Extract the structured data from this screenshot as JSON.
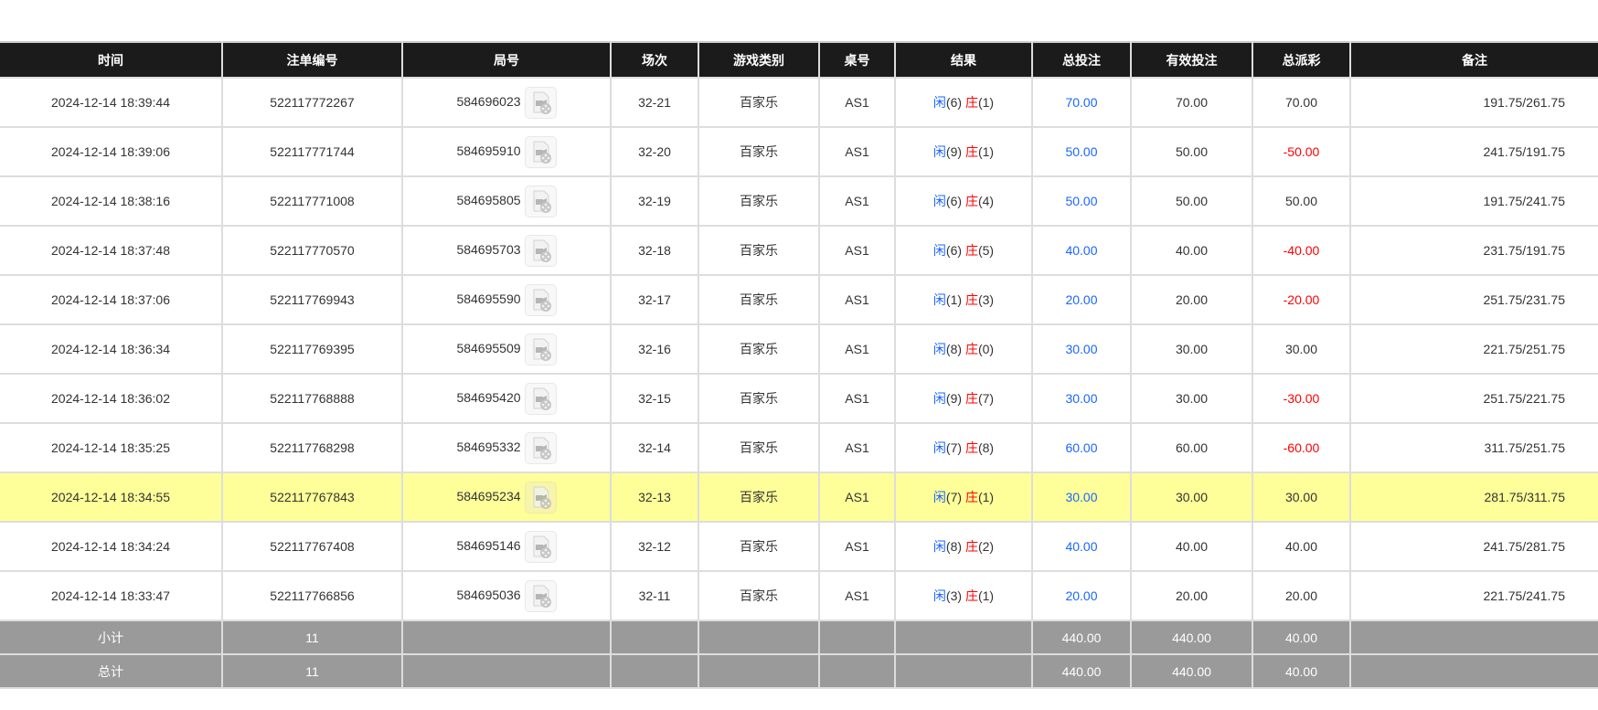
{
  "colors": {
    "header_bg": "#1b1b1b",
    "highlight_row": "#ffff99",
    "summary_bg": "#9a9a9a",
    "player": "#1a66ff",
    "banker": "#ff0000",
    "negative": "#ff0000",
    "total_bet": "#1a66ff"
  },
  "columns": [
    "时间",
    "注单编号",
    "局号",
    "场次",
    "游戏类别",
    "桌号",
    "结果",
    "总投注",
    "有效投注",
    "总派彩",
    "备注"
  ],
  "result_labels": {
    "player": "闲",
    "banker": "庄"
  },
  "rows": [
    {
      "time": "2024-12-14 18:39:44",
      "bet_id": "522117772267",
      "round": "584696023",
      "shoe": "32-21",
      "game": "百家乐",
      "table": "AS1",
      "p": "(6)",
      "b": "(1)",
      "total": "70.00",
      "valid": "70.00",
      "payout": "70.00",
      "neg": false,
      "note": "191.75/261.75",
      "hl": false
    },
    {
      "time": "2024-12-14 18:39:06",
      "bet_id": "522117771744",
      "round": "584695910",
      "shoe": "32-20",
      "game": "百家乐",
      "table": "AS1",
      "p": "(9)",
      "b": "(1)",
      "total": "50.00",
      "valid": "50.00",
      "payout": "-50.00",
      "neg": true,
      "note": "241.75/191.75",
      "hl": false
    },
    {
      "time": "2024-12-14 18:38:16",
      "bet_id": "522117771008",
      "round": "584695805",
      "shoe": "32-19",
      "game": "百家乐",
      "table": "AS1",
      "p": "(6)",
      "b": "(4)",
      "total": "50.00",
      "valid": "50.00",
      "payout": "50.00",
      "neg": false,
      "note": "191.75/241.75",
      "hl": false
    },
    {
      "time": "2024-12-14 18:37:48",
      "bet_id": "522117770570",
      "round": "584695703",
      "shoe": "32-18",
      "game": "百家乐",
      "table": "AS1",
      "p": "(6)",
      "b": "(5)",
      "total": "40.00",
      "valid": "40.00",
      "payout": "-40.00",
      "neg": true,
      "note": "231.75/191.75",
      "hl": false
    },
    {
      "time": "2024-12-14 18:37:06",
      "bet_id": "522117769943",
      "round": "584695590",
      "shoe": "32-17",
      "game": "百家乐",
      "table": "AS1",
      "p": "(1)",
      "b": "(3)",
      "total": "20.00",
      "valid": "20.00",
      "payout": "-20.00",
      "neg": true,
      "note": "251.75/231.75",
      "hl": false
    },
    {
      "time": "2024-12-14 18:36:34",
      "bet_id": "522117769395",
      "round": "584695509",
      "shoe": "32-16",
      "game": "百家乐",
      "table": "AS1",
      "p": "(8)",
      "b": "(0)",
      "total": "30.00",
      "valid": "30.00",
      "payout": "30.00",
      "neg": false,
      "note": "221.75/251.75",
      "hl": false
    },
    {
      "time": "2024-12-14 18:36:02",
      "bet_id": "522117768888",
      "round": "584695420",
      "shoe": "32-15",
      "game": "百家乐",
      "table": "AS1",
      "p": "(9)",
      "b": "(7)",
      "total": "30.00",
      "valid": "30.00",
      "payout": "-30.00",
      "neg": true,
      "note": "251.75/221.75",
      "hl": false
    },
    {
      "time": "2024-12-14 18:35:25",
      "bet_id": "522117768298",
      "round": "584695332",
      "shoe": "32-14",
      "game": "百家乐",
      "table": "AS1",
      "p": "(7)",
      "b": "(8)",
      "total": "60.00",
      "valid": "60.00",
      "payout": "-60.00",
      "neg": true,
      "note": "311.75/251.75",
      "hl": false
    },
    {
      "time": "2024-12-14 18:34:55",
      "bet_id": "522117767843",
      "round": "584695234",
      "shoe": "32-13",
      "game": "百家乐",
      "table": "AS1",
      "p": "(7)",
      "b": "(1)",
      "total": "30.00",
      "valid": "30.00",
      "payout": "30.00",
      "neg": false,
      "note": "281.75/311.75",
      "hl": true
    },
    {
      "time": "2024-12-14 18:34:24",
      "bet_id": "522117767408",
      "round": "584695146",
      "shoe": "32-12",
      "game": "百家乐",
      "table": "AS1",
      "p": "(8)",
      "b": "(2)",
      "total": "40.00",
      "valid": "40.00",
      "payout": "40.00",
      "neg": false,
      "note": "241.75/281.75",
      "hl": false
    },
    {
      "time": "2024-12-14 18:33:47",
      "bet_id": "522117766856",
      "round": "584695036",
      "shoe": "32-11",
      "game": "百家乐",
      "table": "AS1",
      "p": "(3)",
      "b": "(1)",
      "total": "20.00",
      "valid": "20.00",
      "payout": "20.00",
      "neg": false,
      "note": "221.75/241.75",
      "hl": false
    }
  ],
  "summary": [
    {
      "label": "小计",
      "count": "11",
      "total": "440.00",
      "valid": "440.00",
      "payout": "40.00"
    },
    {
      "label": "总计",
      "count": "11",
      "total": "440.00",
      "valid": "440.00",
      "payout": "40.00"
    }
  ]
}
